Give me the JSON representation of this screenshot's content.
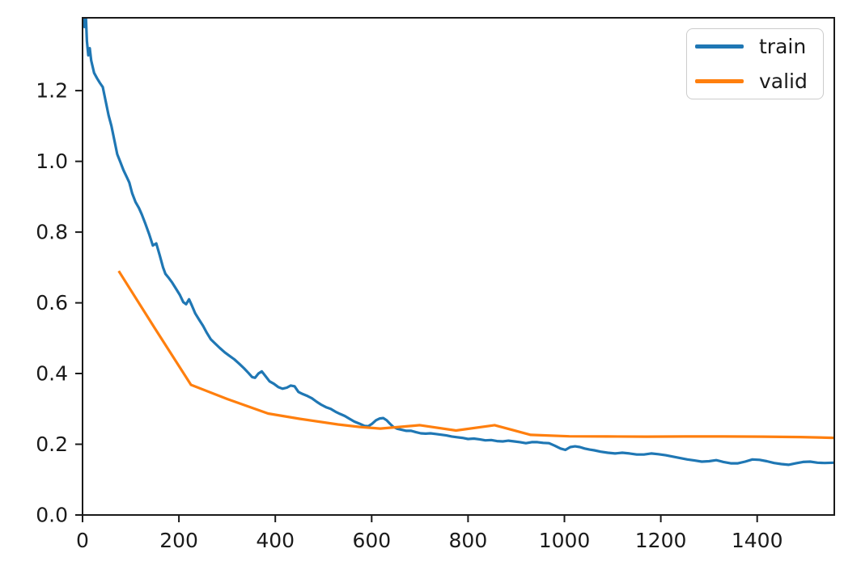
{
  "colors": {
    "background": "#ffffff",
    "axis": "#1a1a1a",
    "text": "#1a1a1a",
    "legend_border": "#cccccc",
    "train": "#1f77b4",
    "valid": "#ff7f0e"
  },
  "chart_data": {
    "type": "line",
    "title": "",
    "xlabel": "",
    "ylabel": "",
    "grid": false,
    "xlim": [
      0,
      1560
    ],
    "ylim": [
      0,
      1.406
    ],
    "xticks": [
      0,
      200,
      400,
      600,
      800,
      1000,
      1200,
      1400
    ],
    "yticks": [
      0.0,
      0.2,
      0.4,
      0.6,
      0.8,
      1.0,
      1.2
    ],
    "ytick_labels": [
      "0.0",
      "0.2",
      "0.4",
      "0.6",
      "0.8",
      "1.0",
      "1.2"
    ],
    "legend": {
      "position": "upper right",
      "entries": [
        "train",
        "valid"
      ]
    },
    "series": [
      {
        "name": "train",
        "color": "#1f77b4",
        "points": [
          [
            0,
            1.47
          ],
          [
            4,
            1.38
          ],
          [
            6,
            1.44
          ],
          [
            9,
            1.34
          ],
          [
            12,
            1.3
          ],
          [
            15,
            1.32
          ],
          [
            18,
            1.285
          ],
          [
            24,
            1.25
          ],
          [
            30,
            1.235
          ],
          [
            36,
            1.222
          ],
          [
            42,
            1.21
          ],
          [
            48,
            1.17
          ],
          [
            54,
            1.13
          ],
          [
            60,
            1.1
          ],
          [
            66,
            1.06
          ],
          [
            72,
            1.02
          ],
          [
            78,
            1.0
          ],
          [
            85,
            0.975
          ],
          [
            92,
            0.955
          ],
          [
            97,
            0.94
          ],
          [
            103,
            0.91
          ],
          [
            110,
            0.885
          ],
          [
            117,
            0.868
          ],
          [
            123,
            0.85
          ],
          [
            130,
            0.825
          ],
          [
            138,
            0.795
          ],
          [
            146,
            0.762
          ],
          [
            153,
            0.768
          ],
          [
            160,
            0.735
          ],
          [
            167,
            0.7
          ],
          [
            172,
            0.682
          ],
          [
            178,
            0.672
          ],
          [
            186,
            0.657
          ],
          [
            194,
            0.64
          ],
          [
            202,
            0.622
          ],
          [
            209,
            0.602
          ],
          [
            215,
            0.596
          ],
          [
            221,
            0.61
          ],
          [
            227,
            0.592
          ],
          [
            234,
            0.57
          ],
          [
            242,
            0.552
          ],
          [
            250,
            0.535
          ],
          [
            258,
            0.515
          ],
          [
            266,
            0.497
          ],
          [
            275,
            0.485
          ],
          [
            285,
            0.472
          ],
          [
            295,
            0.46
          ],
          [
            305,
            0.45
          ],
          [
            315,
            0.44
          ],
          [
            325,
            0.428
          ],
          [
            335,
            0.415
          ],
          [
            344,
            0.402
          ],
          [
            352,
            0.39
          ],
          [
            358,
            0.388
          ],
          [
            365,
            0.4
          ],
          [
            372,
            0.406
          ],
          [
            380,
            0.392
          ],
          [
            388,
            0.378
          ],
          [
            397,
            0.371
          ],
          [
            406,
            0.362
          ],
          [
            415,
            0.357
          ],
          [
            424,
            0.36
          ],
          [
            432,
            0.366
          ],
          [
            440,
            0.364
          ],
          [
            448,
            0.348
          ],
          [
            457,
            0.342
          ],
          [
            466,
            0.337
          ],
          [
            476,
            0.33
          ],
          [
            486,
            0.32
          ],
          [
            495,
            0.312
          ],
          [
            505,
            0.305
          ],
          [
            515,
            0.3
          ],
          [
            525,
            0.292
          ],
          [
            534,
            0.286
          ],
          [
            544,
            0.28
          ],
          [
            554,
            0.272
          ],
          [
            564,
            0.264
          ],
          [
            575,
            0.258
          ],
          [
            585,
            0.252
          ],
          [
            593,
            0.251
          ],
          [
            601,
            0.258
          ],
          [
            609,
            0.268
          ],
          [
            617,
            0.273
          ],
          [
            624,
            0.274
          ],
          [
            631,
            0.268
          ],
          [
            638,
            0.258
          ],
          [
            645,
            0.249
          ],
          [
            653,
            0.244
          ],
          [
            662,
            0.241
          ],
          [
            672,
            0.238
          ],
          [
            682,
            0.238
          ],
          [
            692,
            0.234
          ],
          [
            702,
            0.231
          ],
          [
            712,
            0.23
          ],
          [
            722,
            0.231
          ],
          [
            733,
            0.229
          ],
          [
            744,
            0.227
          ],
          [
            755,
            0.225
          ],
          [
            766,
            0.222
          ],
          [
            777,
            0.22
          ],
          [
            788,
            0.218
          ],
          [
            800,
            0.215
          ],
          [
            812,
            0.216
          ],
          [
            824,
            0.214
          ],
          [
            836,
            0.211
          ],
          [
            848,
            0.212
          ],
          [
            860,
            0.209
          ],
          [
            872,
            0.208
          ],
          [
            884,
            0.21
          ],
          [
            896,
            0.208
          ],
          [
            908,
            0.206
          ],
          [
            920,
            0.203
          ],
          [
            932,
            0.206
          ],
          [
            944,
            0.206
          ],
          [
            956,
            0.204
          ],
          [
            968,
            0.203
          ],
          [
            980,
            0.196
          ],
          [
            992,
            0.188
          ],
          [
            1002,
            0.184
          ],
          [
            1012,
            0.192
          ],
          [
            1022,
            0.194
          ],
          [
            1032,
            0.192
          ],
          [
            1042,
            0.188
          ],
          [
            1052,
            0.185
          ],
          [
            1062,
            0.183
          ],
          [
            1075,
            0.179
          ],
          [
            1090,
            0.176
          ],
          [
            1105,
            0.174
          ],
          [
            1120,
            0.176
          ],
          [
            1135,
            0.174
          ],
          [
            1150,
            0.171
          ],
          [
            1165,
            0.171
          ],
          [
            1180,
            0.174
          ],
          [
            1195,
            0.172
          ],
          [
            1210,
            0.169
          ],
          [
            1225,
            0.165
          ],
          [
            1240,
            0.161
          ],
          [
            1255,
            0.157
          ],
          [
            1270,
            0.154
          ],
          [
            1285,
            0.151
          ],
          [
            1300,
            0.152
          ],
          [
            1315,
            0.155
          ],
          [
            1330,
            0.15
          ],
          [
            1345,
            0.146
          ],
          [
            1360,
            0.146
          ],
          [
            1375,
            0.151
          ],
          [
            1390,
            0.157
          ],
          [
            1405,
            0.156
          ],
          [
            1420,
            0.152
          ],
          [
            1435,
            0.147
          ],
          [
            1450,
            0.144
          ],
          [
            1465,
            0.142
          ],
          [
            1480,
            0.146
          ],
          [
            1495,
            0.15
          ],
          [
            1510,
            0.151
          ],
          [
            1525,
            0.148
          ],
          [
            1540,
            0.147
          ],
          [
            1560,
            0.148
          ]
        ]
      },
      {
        "name": "valid",
        "color": "#ff7f0e",
        "points": [
          [
            75,
            0.69
          ],
          [
            150,
            0.528
          ],
          [
            225,
            0.368
          ],
          [
            300,
            0.328
          ],
          [
            385,
            0.287
          ],
          [
            450,
            0.272
          ],
          [
            530,
            0.256
          ],
          [
            575,
            0.249
          ],
          [
            618,
            0.2445
          ],
          [
            700,
            0.254
          ],
          [
            775,
            0.239
          ],
          [
            855,
            0.254
          ],
          [
            930,
            0.2265
          ],
          [
            1010,
            0.2225
          ],
          [
            1090,
            0.222
          ],
          [
            1170,
            0.2215
          ],
          [
            1250,
            0.222
          ],
          [
            1330,
            0.222
          ],
          [
            1410,
            0.2215
          ],
          [
            1490,
            0.2205
          ],
          [
            1560,
            0.218
          ]
        ]
      }
    ]
  }
}
